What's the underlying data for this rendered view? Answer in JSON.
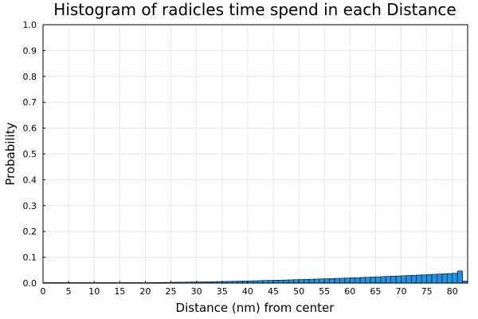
{
  "chart_data": {
    "type": "bar",
    "title": "Histogram of radicles time spend in each Distance",
    "xlabel": "Distance (nm) from center",
    "ylabel": "Probability",
    "xlim": [
      0,
      83
    ],
    "ylim": [
      0,
      1.0
    ],
    "grid": true,
    "bin_width": 1,
    "xticks": [
      "0",
      "5",
      "10",
      "15",
      "20",
      "25",
      "30",
      "35",
      "40",
      "45",
      "50",
      "55",
      "60",
      "65",
      "70",
      "75",
      "80"
    ],
    "yticks": [
      "0.0",
      "0.1",
      "0.2",
      "0.3",
      "0.4",
      "0.5",
      "0.6",
      "0.7",
      "0.8",
      "0.9",
      "1.0"
    ],
    "series": [
      {
        "color": "#1f91e6",
        "x": [
          0,
          1,
          2,
          3,
          4,
          5,
          6,
          7,
          8,
          9,
          10,
          11,
          12,
          13,
          14,
          15,
          16,
          17,
          18,
          19,
          20,
          21,
          22,
          23,
          24,
          25,
          26,
          27,
          28,
          29,
          30,
          31,
          32,
          33,
          34,
          35,
          36,
          37,
          38,
          39,
          40,
          41,
          42,
          43,
          44,
          45,
          46,
          47,
          48,
          49,
          50,
          51,
          52,
          53,
          54,
          55,
          56,
          57,
          58,
          59,
          60,
          61,
          62,
          63,
          64,
          65,
          66,
          67,
          68,
          69,
          70,
          71,
          72,
          73,
          74,
          75,
          76,
          77,
          78,
          79,
          80,
          81,
          82
        ],
        "values": [
          0.0,
          0.0,
          0.0,
          0.0,
          0.0001,
          0.0001,
          0.0002,
          0.0002,
          0.0003,
          0.0003,
          0.0004,
          0.0005,
          0.0006,
          0.0007,
          0.0008,
          0.0009,
          0.0011,
          0.0012,
          0.0014,
          0.0016,
          0.0018,
          0.002,
          0.0022,
          0.0025,
          0.0028,
          0.0031,
          0.0034,
          0.0037,
          0.004,
          0.0043,
          0.0046,
          0.005,
          0.0053,
          0.0057,
          0.0061,
          0.0065,
          0.0069,
          0.0073,
          0.0077,
          0.0082,
          0.0086,
          0.0091,
          0.0096,
          0.0101,
          0.0106,
          0.0111,
          0.0116,
          0.0121,
          0.0127,
          0.0133,
          0.0139,
          0.0145,
          0.0151,
          0.0157,
          0.0163,
          0.017,
          0.0176,
          0.0183,
          0.019,
          0.0197,
          0.0205,
          0.0212,
          0.0219,
          0.0227,
          0.0235,
          0.0243,
          0.0251,
          0.0259,
          0.0267,
          0.0276,
          0.0284,
          0.0293,
          0.0302,
          0.0311,
          0.032,
          0.033,
          0.034,
          0.035,
          0.036,
          0.037,
          0.038,
          0.047,
          0.008
        ]
      }
    ]
  }
}
